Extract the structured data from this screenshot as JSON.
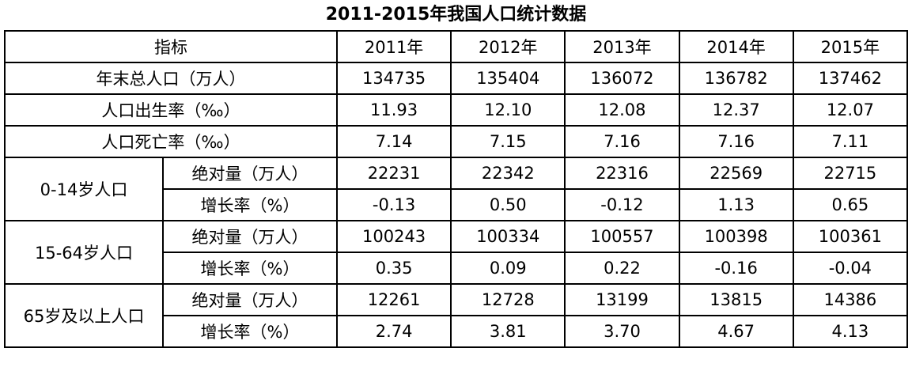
{
  "title": "2011-2015年我国人口统计数据",
  "header": {
    "label": "指标",
    "years": [
      "2011年",
      "2012年",
      "2013年",
      "2014年",
      "2015年"
    ]
  },
  "rows": [
    {
      "label": "年末总人口（万人）",
      "values": [
        "134735",
        "135404",
        "136072",
        "136782",
        "137462"
      ]
    },
    {
      "label": "人口出生率（‰）",
      "values": [
        "11.93",
        "12.10",
        "12.08",
        "12.37",
        "12.07"
      ]
    },
    {
      "label": "人口死亡率（‰）",
      "values": [
        "7.14",
        "7.15",
        "7.16",
        "7.16",
        "7.11"
      ]
    }
  ],
  "groups": [
    {
      "label": "0-14岁人口",
      "rows": [
        {
          "label": "绝对量（万人）",
          "values": [
            "22231",
            "22342",
            "22316",
            "22569",
            "22715"
          ]
        },
        {
          "label": "增长率（%）",
          "values": [
            "-0.13",
            "0.50",
            "-0.12",
            "1.13",
            "0.65"
          ]
        }
      ]
    },
    {
      "label": "15-64岁人口",
      "rows": [
        {
          "label": "绝对量（万人）",
          "values": [
            "100243",
            "100334",
            "100557",
            "100398",
            "100361"
          ]
        },
        {
          "label": "增长率（%）",
          "values": [
            "0.35",
            "0.09",
            "0.22",
            "-0.16",
            "-0.04"
          ]
        }
      ]
    },
    {
      "label": "65岁及以上人口",
      "rows": [
        {
          "label": "绝对量（万人）",
          "values": [
            "12261",
            "12728",
            "13199",
            "13815",
            "14386"
          ]
        },
        {
          "label": "增长率（%）",
          "values": [
            "2.74",
            "3.81",
            "3.70",
            "4.67",
            "4.13"
          ]
        }
      ]
    }
  ]
}
